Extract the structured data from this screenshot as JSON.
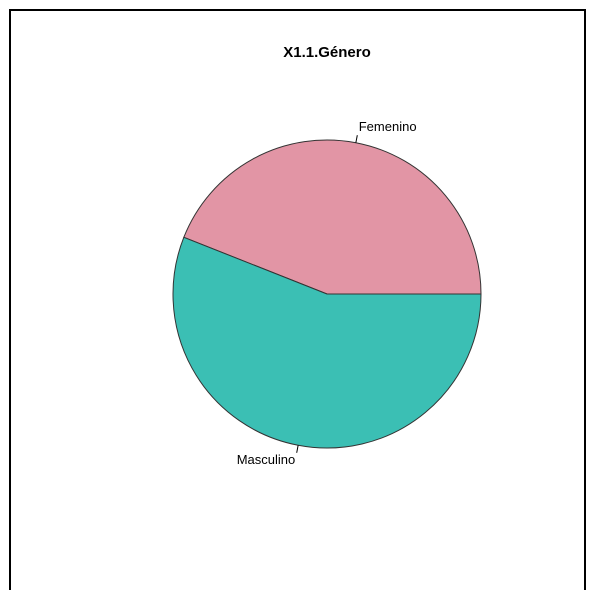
{
  "chart_data": {
    "type": "pie",
    "title": "X1.1.Género",
    "categories": [
      "Femenino",
      "Masculino"
    ],
    "values": [
      44,
      56
    ],
    "colors": [
      "#e295a5",
      "#3bbfb4"
    ]
  }
}
